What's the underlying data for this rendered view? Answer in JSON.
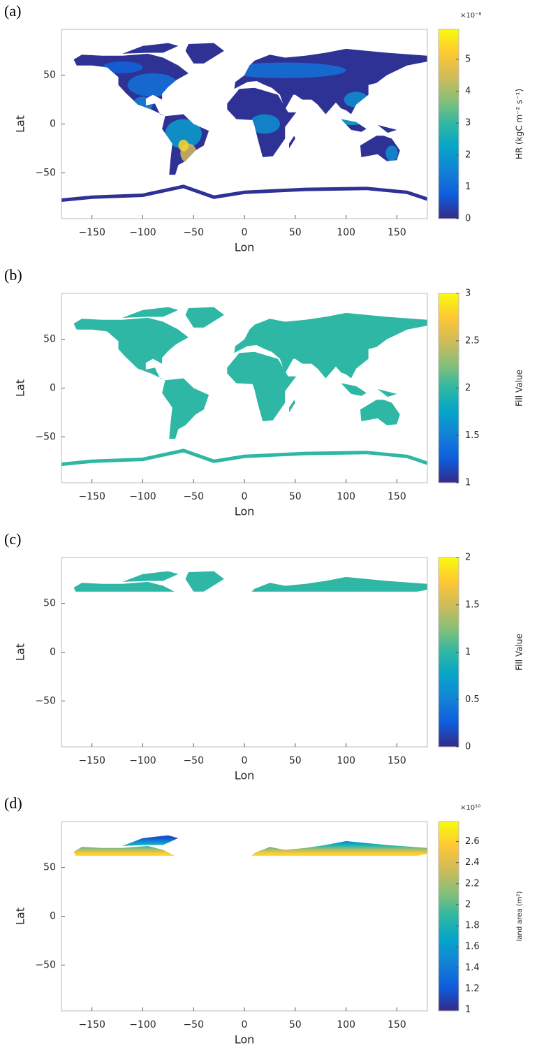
{
  "chart_data": [
    {
      "type": "map",
      "panel_label": "(a)",
      "xlabel": "Lon",
      "ylabel": "Lat",
      "xlim": [
        -180,
        180
      ],
      "ylim": [
        -97,
        97
      ],
      "xticks": [
        {
          "value": -150,
          "label": "−150"
        },
        {
          "value": -100,
          "label": "−100"
        },
        {
          "value": -50,
          "label": "−50"
        },
        0,
        50,
        100,
        150
      ],
      "yticks": [
        {
          "value": -50,
          "label": "−50"
        },
        0,
        50
      ],
      "colorbar": {
        "label": "HR (kgC m⁻² s⁻¹)",
        "clim": [
          0,
          5.94
        ],
        "ticks": [
          0,
          1,
          2,
          3,
          4,
          5
        ],
        "exponent_label": "×10⁻⁸"
      }
    },
    {
      "type": "map",
      "panel_label": "(b)",
      "xlabel": "Lon",
      "ylabel": "Lat",
      "xlim": [
        -180,
        180
      ],
      "ylim": [
        -97,
        97
      ],
      "xticks": [
        {
          "value": -150,
          "label": "−150"
        },
        {
          "value": -100,
          "label": "−100"
        },
        {
          "value": -50,
          "label": "−50"
        },
        0,
        50,
        100,
        150
      ],
      "yticks": [
        {
          "value": -50,
          "label": "−50"
        },
        0,
        50
      ],
      "fill_value": 2,
      "colorbar": {
        "label": "Fill Value",
        "clim": [
          1,
          3
        ],
        "ticks": [
          1,
          1.5,
          2,
          2.5,
          3
        ]
      }
    },
    {
      "type": "map",
      "panel_label": "(c)",
      "xlabel": "Lon",
      "ylabel": "Lat",
      "xlim": [
        -180,
        180
      ],
      "ylim": [
        -97,
        97
      ],
      "xticks": [
        {
          "value": -150,
          "label": "−150"
        },
        {
          "value": -100,
          "label": "−100"
        },
        {
          "value": -50,
          "label": "−50"
        },
        0,
        50,
        100,
        150
      ],
      "yticks": [
        {
          "value": -50,
          "label": "−50"
        },
        0,
        50
      ],
      "fill_value": 1,
      "min_lat": 62,
      "colorbar": {
        "label": "Fill Value",
        "clim": [
          0,
          2
        ],
        "ticks": [
          0,
          0.5,
          1,
          1.5,
          2
        ]
      }
    },
    {
      "type": "map",
      "panel_label": "(d)",
      "xlabel": "Lon",
      "ylabel": "Lat",
      "xlim": [
        -180,
        180
      ],
      "ylim": [
        -97,
        97
      ],
      "xticks": [
        {
          "value": -150,
          "label": "−150"
        },
        {
          "value": -100,
          "label": "−100"
        },
        {
          "value": -50,
          "label": "−50"
        },
        0,
        50,
        100,
        150
      ],
      "yticks": [
        {
          "value": -50,
          "label": "−50"
        },
        0,
        50
      ],
      "min_lat": 62,
      "colorbar": {
        "label": "land area (m²)",
        "clim": [
          0.99,
          2.79
        ],
        "ticks": [
          1,
          1.2,
          1.4,
          1.6,
          1.8,
          2,
          2.2,
          2.4,
          2.6
        ],
        "exponent_label": "×10¹⁰"
      }
    }
  ],
  "colormap": [
    "#352a87",
    "#0f5cdd",
    "#1481d6",
    "#06a4ca",
    "#2eb7a4",
    "#87bf77",
    "#d1bb59",
    "#fec832",
    "#f9fb0e"
  ]
}
